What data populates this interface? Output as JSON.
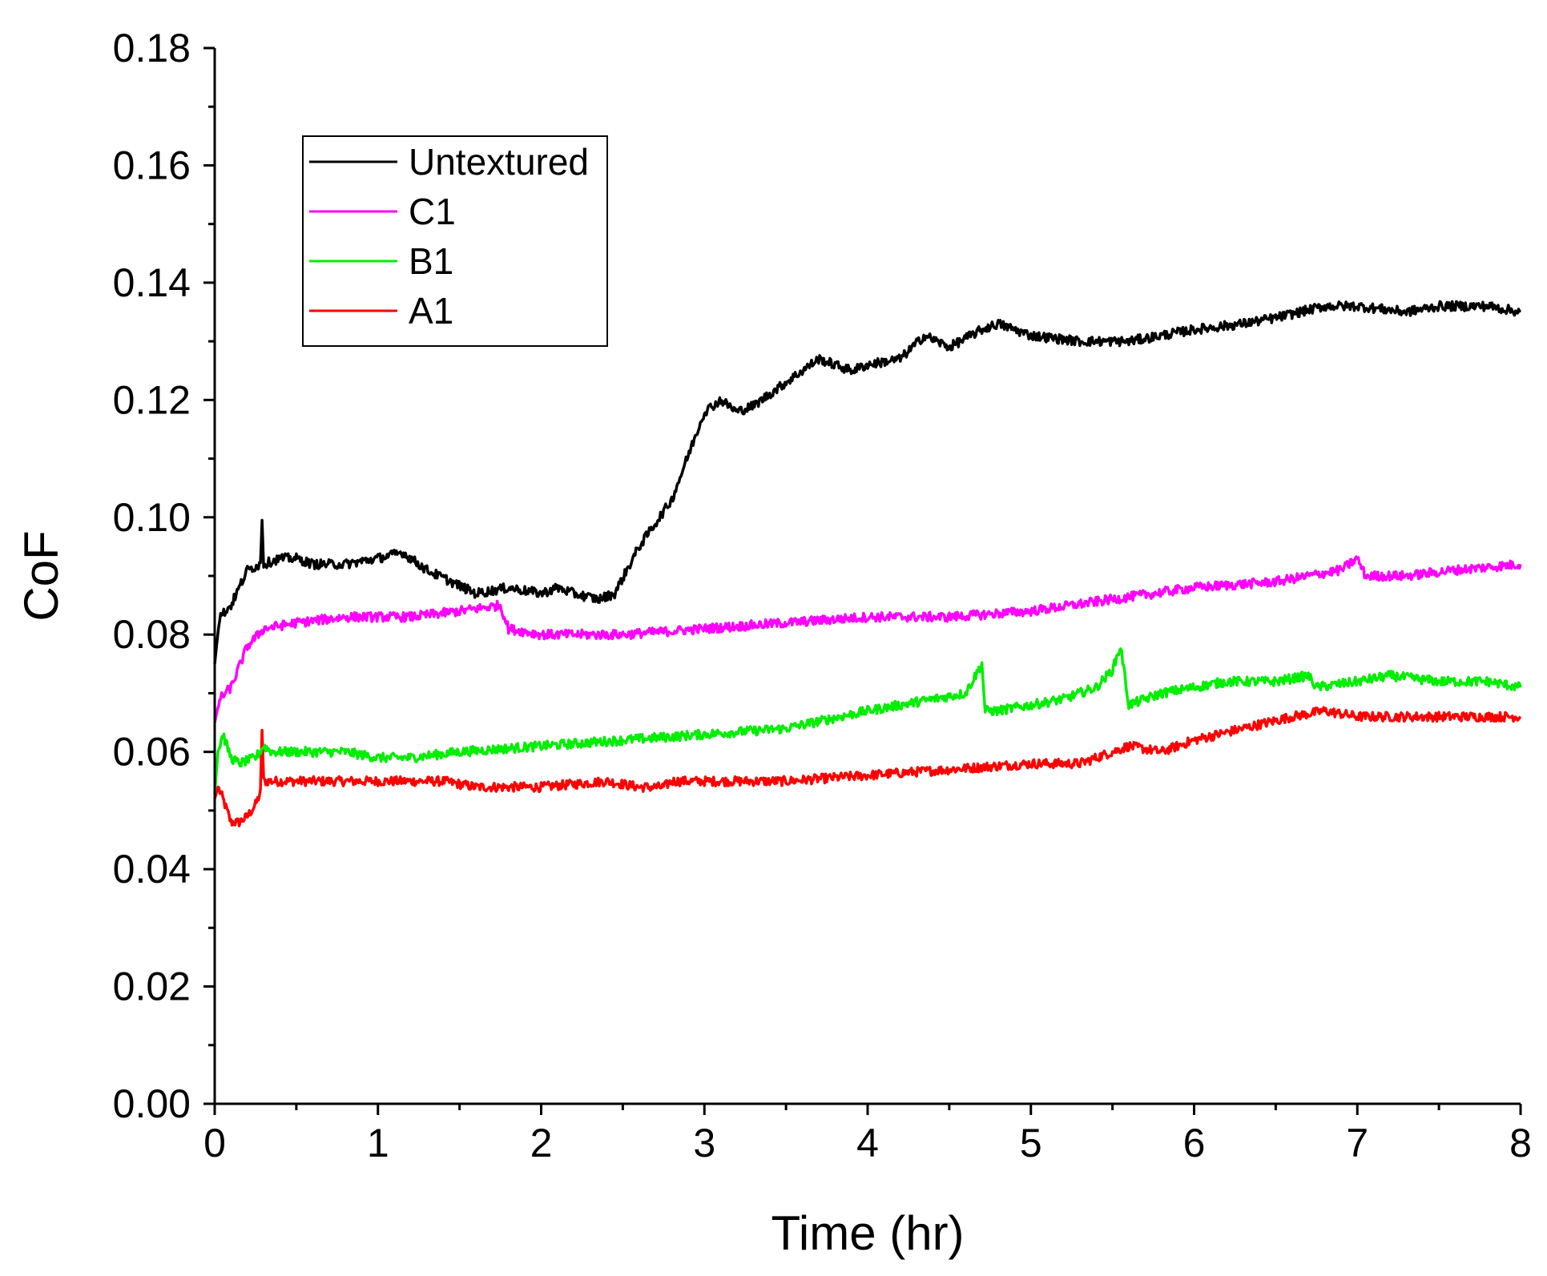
{
  "chart_data": {
    "type": "line",
    "title": "",
    "xlabel": "Time (hr)",
    "ylabel": "CoF",
    "xlim": [
      0,
      8
    ],
    "ylim": [
      0,
      0.18
    ],
    "xticks": [
      "0",
      "1",
      "2",
      "3",
      "4",
      "5",
      "6",
      "7",
      "8"
    ],
    "yticks": [
      "0.00",
      "0.02",
      "0.04",
      "0.06",
      "0.08",
      "0.10",
      "0.12",
      "0.14",
      "0.16",
      "0.18"
    ],
    "grid": false,
    "legend_position": "top-left",
    "series": [
      {
        "name": "Untextured",
        "color": "#000000",
        "x": [
          0,
          0.03,
          0.1,
          0.2,
          0.28,
          0.29,
          0.3,
          0.4,
          0.5,
          0.6,
          0.8,
          1.0,
          1.15,
          1.3,
          1.45,
          1.6,
          1.8,
          2.0,
          2.1,
          2.2,
          2.35,
          2.45,
          2.6,
          2.8,
          3.0,
          3.1,
          3.2,
          3.3,
          3.5,
          3.7,
          3.9,
          4.0,
          4.2,
          4.35,
          4.5,
          4.7,
          4.8,
          5.0,
          5.3,
          5.6,
          5.8,
          6.0,
          6.3,
          6.5,
          6.8,
          7.0,
          7.3,
          7.5,
          7.8,
          8.0
        ],
        "y": [
          0.075,
          0.083,
          0.085,
          0.091,
          0.092,
          0.1,
          0.092,
          0.093,
          0.093,
          0.092,
          0.092,
          0.093,
          0.094,
          0.091,
          0.089,
          0.087,
          0.088,
          0.087,
          0.088,
          0.087,
          0.086,
          0.087,
          0.095,
          0.103,
          0.118,
          0.12,
          0.118,
          0.119,
          0.123,
          0.127,
          0.125,
          0.126,
          0.127,
          0.131,
          0.129,
          0.132,
          0.133,
          0.131,
          0.13,
          0.13,
          0.131,
          0.132,
          0.133,
          0.134,
          0.136,
          0.136,
          0.135,
          0.136,
          0.136,
          0.135
        ]
      },
      {
        "name": "C1",
        "color": "#ff00ff",
        "x": [
          0,
          0.03,
          0.1,
          0.2,
          0.3,
          0.5,
          0.8,
          1.0,
          1.2,
          1.5,
          1.75,
          1.8,
          2.0,
          2.3,
          2.5,
          3.0,
          3.5,
          4.0,
          4.5,
          5.0,
          5.5,
          6.0,
          6.5,
          6.9,
          7.0,
          7.05,
          7.3,
          7.6,
          8.0
        ],
        "y": [
          0.065,
          0.069,
          0.071,
          0.078,
          0.081,
          0.082,
          0.083,
          0.083,
          0.083,
          0.084,
          0.085,
          0.081,
          0.08,
          0.08,
          0.08,
          0.081,
          0.082,
          0.083,
          0.083,
          0.084,
          0.086,
          0.088,
          0.089,
          0.091,
          0.093,
          0.09,
          0.09,
          0.091,
          0.092
        ]
      },
      {
        "name": "B1",
        "color": "#00ee00",
        "x": [
          0,
          0.02,
          0.05,
          0.1,
          0.15,
          0.25,
          0.3,
          0.35,
          0.5,
          0.8,
          1.0,
          1.2,
          1.5,
          2.0,
          2.5,
          3.0,
          3.5,
          4.0,
          4.2,
          4.4,
          4.6,
          4.7,
          4.72,
          4.8,
          5.0,
          5.2,
          5.4,
          5.5,
          5.55,
          5.6,
          5.8,
          6.0,
          6.2,
          6.5,
          6.7,
          6.75,
          7.0,
          7.2,
          7.5,
          7.8,
          8.0
        ],
        "y": [
          0.053,
          0.06,
          0.063,
          0.059,
          0.058,
          0.059,
          0.061,
          0.06,
          0.06,
          0.06,
          0.059,
          0.059,
          0.06,
          0.061,
          0.062,
          0.063,
          0.064,
          0.067,
          0.068,
          0.069,
          0.07,
          0.075,
          0.067,
          0.067,
          0.068,
          0.069,
          0.071,
          0.074,
          0.078,
          0.068,
          0.07,
          0.071,
          0.072,
          0.072,
          0.073,
          0.071,
          0.072,
          0.073,
          0.072,
          0.072,
          0.071
        ]
      },
      {
        "name": "A1",
        "color": "#ff0000",
        "x": [
          0,
          0.02,
          0.05,
          0.1,
          0.15,
          0.2,
          0.25,
          0.28,
          0.29,
          0.3,
          0.4,
          0.6,
          0.8,
          1.0,
          1.2,
          1.4,
          1.6,
          2.0,
          2.4,
          2.6,
          2.75,
          2.8,
          3.0,
          3.5,
          4.0,
          4.5,
          5.0,
          5.3,
          5.5,
          5.6,
          5.8,
          6.0,
          6.3,
          6.6,
          6.8,
          7.0,
          7.3,
          7.6,
          8.0
        ],
        "y": [
          0.052,
          0.054,
          0.052,
          0.048,
          0.048,
          0.049,
          0.051,
          0.053,
          0.064,
          0.055,
          0.055,
          0.055,
          0.055,
          0.055,
          0.055,
          0.055,
          0.054,
          0.054,
          0.055,
          0.054,
          0.054,
          0.055,
          0.055,
          0.055,
          0.056,
          0.057,
          0.058,
          0.058,
          0.06,
          0.061,
          0.06,
          0.062,
          0.064,
          0.066,
          0.067,
          0.066,
          0.066,
          0.066,
          0.066
        ]
      }
    ]
  }
}
